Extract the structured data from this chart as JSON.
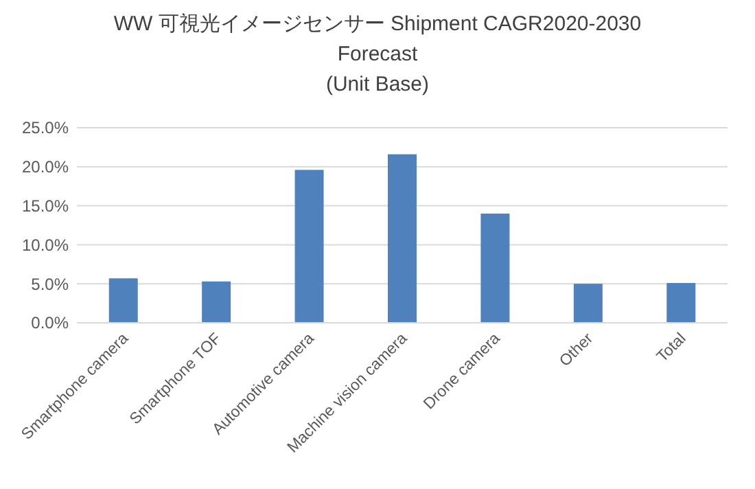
{
  "chart_data": {
    "type": "bar",
    "title": "WW 可視光イメージセンサー Shipment CAGR2020-2030\nForecast\n(Unit Base)",
    "categories": [
      "Smartphone camera",
      "Smartphone TOF",
      "Automotive camera",
      "Machine vision camera",
      "Drone camera",
      "Other",
      "Total"
    ],
    "values": [
      5.7,
      5.3,
      19.6,
      21.6,
      14.0,
      5.0,
      5.1
    ],
    "color": "#4f81bd",
    "ylim": [
      0,
      25
    ],
    "yticks": [
      {
        "value": 0,
        "label": "0.0%"
      },
      {
        "value": 5,
        "label": "5.0%"
      },
      {
        "value": 10,
        "label": "10.0%"
      },
      {
        "value": 15,
        "label": "15.0%"
      },
      {
        "value": 20,
        "label": "20.0%"
      },
      {
        "value": 25,
        "label": "25.0%"
      }
    ],
    "grid": "y"
  }
}
